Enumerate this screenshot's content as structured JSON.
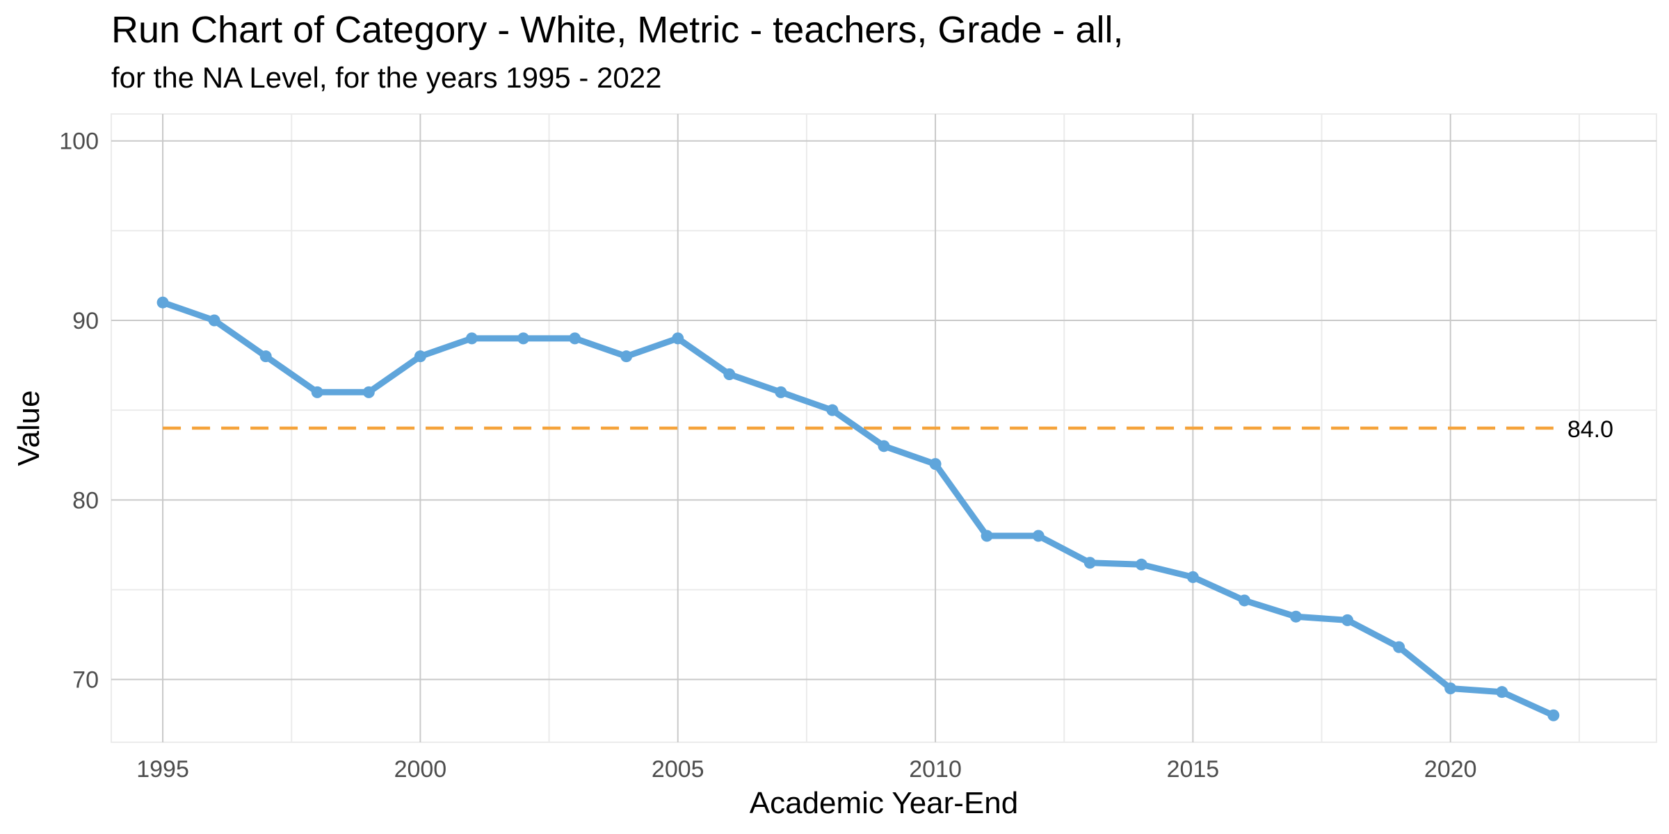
{
  "chart_data": {
    "type": "line",
    "title": "Run Chart of Category -  White, Metric - teachers, Grade - all,",
    "subtitle": "for the NA Level, for the years 1995 - 2022",
    "xlabel": "Academic Year-End",
    "ylabel": "Value",
    "xlim": [
      1994,
      2024
    ],
    "ylim": [
      66.5,
      101.5
    ],
    "x_ticks": [
      1995,
      2000,
      2005,
      2010,
      2015,
      2020
    ],
    "y_ticks": [
      70,
      80,
      90,
      100
    ],
    "grid": true,
    "series": [
      {
        "x": [
          1995,
          1996,
          1997,
          1998,
          1999,
          2000,
          2001,
          2002,
          2003,
          2004,
          2005,
          2006,
          2007,
          2008,
          2009,
          2010,
          2011,
          2012,
          2013,
          2014,
          2015,
          2016,
          2017,
          2018,
          2019,
          2020,
          2021,
          2022
        ],
        "values": [
          91,
          90,
          88,
          86,
          86,
          88,
          89,
          89,
          89,
          88,
          89,
          87,
          86,
          85,
          83,
          82,
          78,
          78,
          76.5,
          76.4,
          75.7,
          74.4,
          73.5,
          73.3,
          71.8,
          69.5,
          69.3,
          68
        ],
        "color": "#5fa5db"
      }
    ],
    "reference_line": {
      "value": 84.0,
      "label": "84.0",
      "x_start": 1995,
      "x_end": 2022,
      "color": "#f5a33b",
      "style": "dashed"
    }
  }
}
